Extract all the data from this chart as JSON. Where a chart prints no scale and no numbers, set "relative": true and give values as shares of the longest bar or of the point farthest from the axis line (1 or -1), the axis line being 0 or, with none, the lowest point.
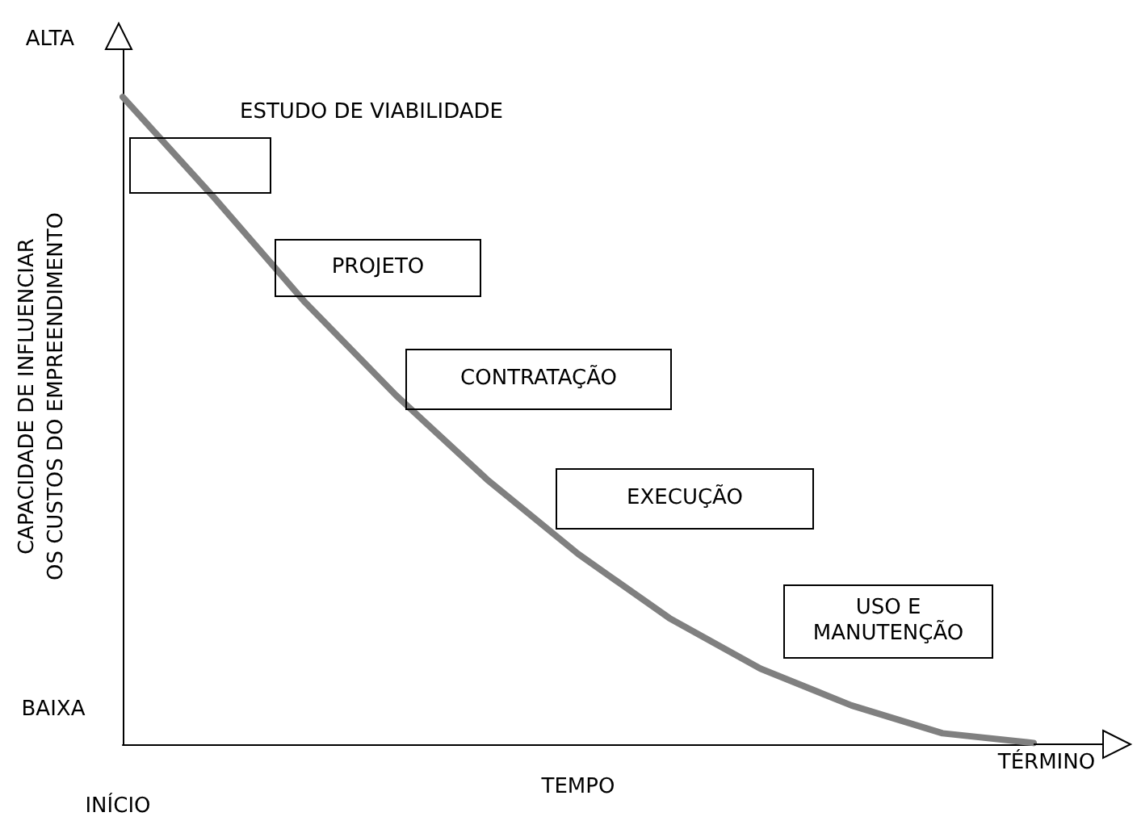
{
  "chart_data": {
    "type": "line",
    "relative": true,
    "xlabel": "TEMPO",
    "ylabel": "CAPACIDADE DE INFLUENCIAR\nOS CUSTOS DO EMPREENDIMENTO",
    "categories": [
      null,
      null,
      null,
      null,
      null,
      null,
      null,
      null,
      null,
      null,
      null
    ],
    "series": [
      {
        "color": "#808080",
        "values": [
          1,
          0.845,
          0.683,
          0.539,
          0.409,
          0.294,
          0.195,
          0.117,
          0.06,
          0.017,
          0.002
        ]
      }
    ],
    "marker": "none",
    "line_style": "solid",
    "grid": false,
    "annotations": [
      "ALTA",
      "BAIXA",
      "ESTUDO DE VIABILIDADE",
      "PROJETO",
      "CONTRATAÇÃO",
      "EXECUÇÃO",
      "USO E MANUTENÇÃO",
      "INÍCIO",
      "TÉRMINO"
    ]
  }
}
